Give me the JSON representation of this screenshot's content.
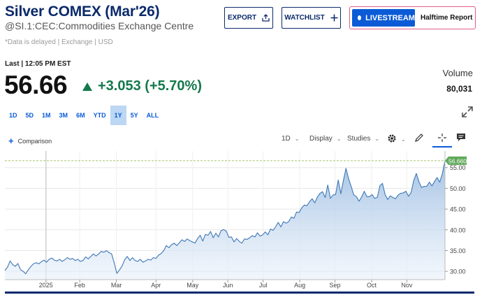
{
  "header": {
    "title": "Silver COMEX (Mar'26)",
    "subtitle": "@SI.1:CEC:Commodities Exchange Centre",
    "delayed_note": "*Data is delayed | Exchange | USD"
  },
  "actions": {
    "export_label": "EXPORT",
    "watchlist_label": "WATCHLIST",
    "livestream_label": "LIVESTREAM",
    "halftime_label": "Halftime Report"
  },
  "quote": {
    "last_label": "Last | 12:05 PM EST",
    "price": "56.66",
    "change": "+3.053 (+5.70%)",
    "volume_label": "Volume",
    "volume_value": "80,031"
  },
  "ranges": [
    "1D",
    "5D",
    "1M",
    "3M",
    "6M",
    "YTD",
    "1Y",
    "5Y",
    "ALL"
  ],
  "active_range": "1Y",
  "toolbar": {
    "comparison_label": "Comparison",
    "interval_label": "1D",
    "display_label": "Display",
    "studies_label": "Studies"
  },
  "colors": {
    "brand": "#0b2a6b",
    "accent": "#0b5bd6",
    "positive": "#137a4b",
    "line": "#3f78b5"
  },
  "chart_data": {
    "type": "area",
    "x_ticks": [
      "2025",
      "Feb",
      "Mar",
      "Apr",
      "May",
      "Jun",
      "Jul",
      "Aug",
      "Sep",
      "Oct",
      "Nov"
    ],
    "y_ticks": [
      "30.00",
      "35.00",
      "40.00",
      "45.00",
      "50.00",
      "55.00"
    ],
    "ylim": [
      28,
      59
    ],
    "last_value_label": "56.660",
    "last_value": 56.66,
    "series": [
      {
        "values": [
          30.2,
          31.0,
          32.5,
          31.6,
          31.2,
          31.9,
          30.4,
          30.0,
          29.4,
          30.4,
          31.2,
          31.8,
          32.1,
          31.8,
          32.3,
          32.7,
          32.2,
          32.9,
          33.2,
          32.7,
          32.5,
          32.9,
          32.4,
          32.8,
          33.3,
          32.9,
          33.1,
          32.6,
          32.9,
          32.4,
          32.6,
          33.5,
          33.0,
          33.6,
          34.2,
          33.7,
          34.2,
          34.8,
          34.6,
          35.0,
          34.5,
          34.2,
          32.0,
          29.5,
          30.3,
          31.3,
          32.8,
          33.6,
          32.6,
          33.3,
          32.6,
          32.4,
          32.9,
          32.2,
          32.5,
          32.9,
          32.7,
          33.3,
          33.1,
          33.9,
          34.3,
          35.0,
          36.2,
          35.7,
          36.4,
          36.8,
          36.2,
          36.9,
          37.6,
          37.2,
          37.8,
          37.4,
          37.1,
          36.8,
          37.9,
          38.7,
          37.3,
          38.9,
          38.7,
          39.6,
          38.1,
          39.2,
          38.3,
          39.8,
          40.1,
          39.7,
          38.2,
          38.3,
          37.1,
          37.9,
          37.2,
          36.8,
          37.8,
          37.7,
          38.1,
          38.6,
          38.3,
          39.3,
          38.5,
          38.8,
          39.5,
          38.8,
          40.2,
          39.9,
          40.8,
          41.8,
          40.7,
          42.0,
          41.6,
          42.0,
          43.1,
          42.8,
          44.3,
          44.2,
          45.3,
          46.0,
          45.8,
          46.8,
          47.5,
          46.5,
          47.9,
          48.8,
          49.2,
          47.8,
          50.8,
          47.6,
          48.4,
          48.5,
          52.0,
          48.7,
          51.9,
          54.8,
          52.3,
          50.4,
          48.4,
          48.0,
          46.9,
          47.9,
          49.3,
          48.0,
          48.0,
          48.5,
          47.6,
          47.8,
          50.6,
          51.2,
          48.5,
          47.3,
          48.2,
          47.8,
          47.5,
          48.4,
          48.8,
          48.9,
          49.3,
          48.1,
          49.0,
          51.9,
          53.6,
          51.6,
          50.2,
          50.5,
          50.5,
          51.5,
          50.6,
          51.7,
          52.6,
          51.5,
          53.6,
          56.7
        ]
      }
    ]
  }
}
